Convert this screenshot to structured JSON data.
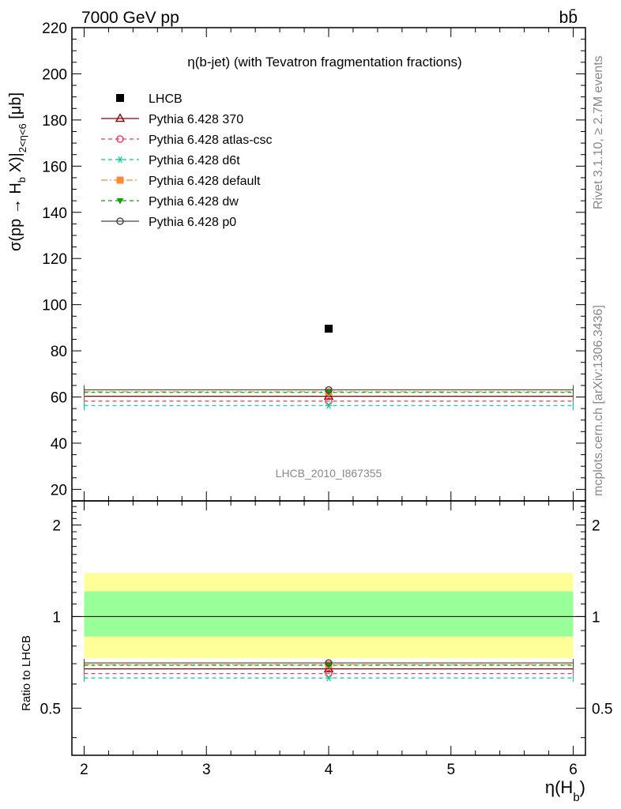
{
  "header": {
    "left": "7000 GeV pp",
    "right": "bb̄"
  },
  "side": {
    "rivet": "Rivet 3.1.10, ≥ 2.7M events",
    "mcplots": "mcplots.cern.ch [arXiv:1306.3436]"
  },
  "chart_data": [
    {
      "type": "scatter",
      "title": "η(b-jet) (with Tevatron fragmentation fractions)",
      "watermark": "LHCB_2010_I867355",
      "ylabel": "σ(pp → H_b X)|_{2<η<6} [μb]",
      "ylabel_parts": {
        "pre": "σ(pp → H",
        "sub1": "b",
        "mid": " X)|",
        "sub2": "2<η<6",
        "post": " [μb]"
      },
      "xlim": [
        1.9,
        6.1
      ],
      "ylim": [
        15,
        220
      ],
      "yticks": [
        20,
        40,
        60,
        80,
        100,
        120,
        140,
        160,
        180,
        200,
        220
      ],
      "x": [
        4.0
      ],
      "xerr": [
        [
          2.0,
          6.0
        ]
      ],
      "data_point": {
        "name": "LHCB",
        "x": 4.0,
        "y": 89.6
      },
      "series": [
        {
          "name": "LHCB",
          "values": [
            89.6
          ],
          "color": "#000000",
          "marker": "square-filled",
          "dash": "none"
        },
        {
          "name": "Pythia 6.428 370",
          "values": [
            60.3
          ],
          "color": "#8b0000",
          "marker": "triangle-open",
          "dash": "solid"
        },
        {
          "name": "Pythia 6.428 atlas-csc",
          "values": [
            58.2
          ],
          "color": "#ff3355",
          "marker": "circle-open",
          "dash": "dashed"
        },
        {
          "name": "Pythia 6.428 d6t",
          "values": [
            56.3
          ],
          "color": "#00cc99",
          "marker": "asterisk",
          "dash": "dashed"
        },
        {
          "name": "Pythia 6.428 default",
          "values": [
            62.3
          ],
          "color": "#ff8833",
          "marker": "square-filled",
          "dash": "dashdot"
        },
        {
          "name": "Pythia 6.428 dw",
          "values": [
            62.0
          ],
          "color": "#00aa00",
          "marker": "triangle-down-filled",
          "dash": "dashed"
        },
        {
          "name": "Pythia 6.428 p0",
          "values": [
            63.1
          ],
          "color": "#444444",
          "marker": "circle-open",
          "dash": "solid"
        }
      ],
      "legend_placement": "top-left"
    },
    {
      "type": "scatter",
      "ylabel": "Ratio to LHCB",
      "xlabel": "η(H_b)",
      "xlabel_parts": {
        "pre": "η(H",
        "sub": "b",
        "post": ")"
      },
      "xlim": [
        1.9,
        6.1
      ],
      "xticks": [
        2,
        3,
        4,
        5,
        6
      ],
      "ylim": [
        0.35,
        2.4
      ],
      "yticks": [
        0.5,
        1,
        2
      ],
      "ytick_labels": [
        "0.5",
        "1",
        "2"
      ],
      "yscale": "log",
      "bands": [
        {
          "label": "total uncertainty",
          "color": "#ffff99",
          "lo": 0.73,
          "hi": 1.39
        },
        {
          "label": "statistical uncertainty",
          "color": "#99ff99",
          "lo": 0.86,
          "hi": 1.21
        }
      ],
      "reference": 1.0,
      "ratios": [
        0.673,
        0.65,
        0.628,
        0.695,
        0.692,
        0.704
      ]
    }
  ]
}
